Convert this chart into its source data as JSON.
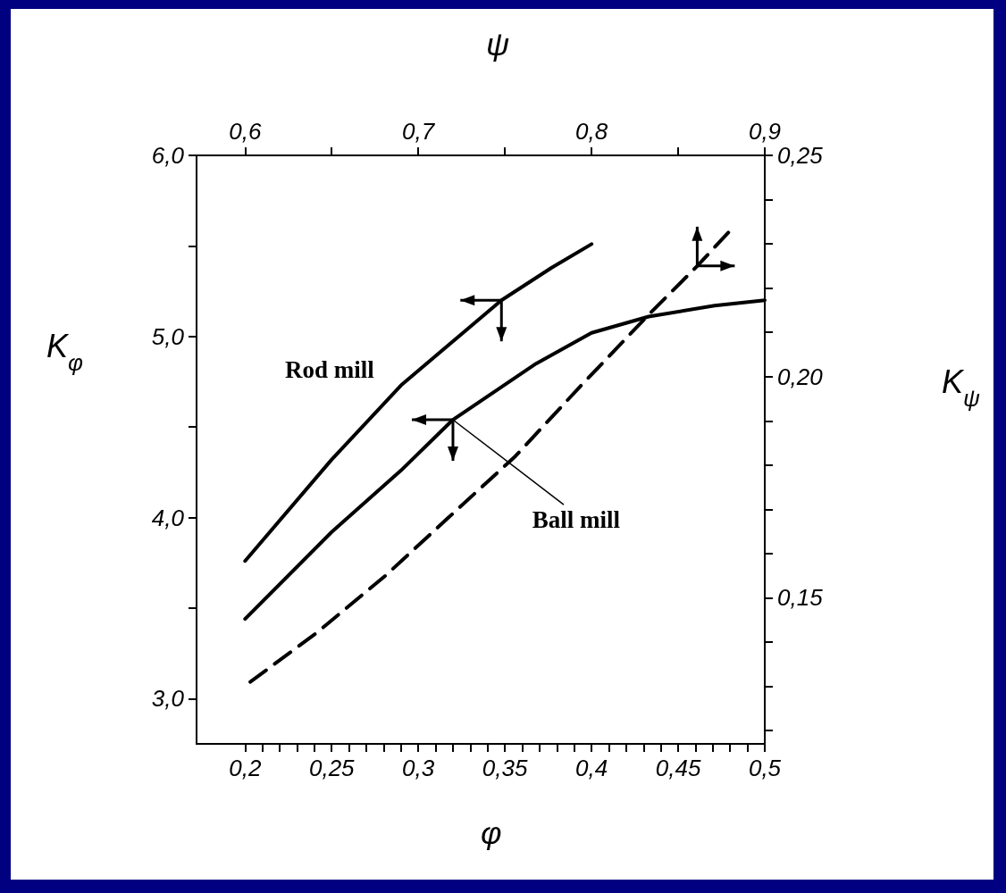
{
  "chart_data": [
    {
      "type": "line",
      "xlabel": "φ",
      "ylabel": "K$_{φ}$",
      "grid": false,
      "legend": false,
      "marker": "none",
      "xlim": [
        0.172,
        0.5
      ],
      "xticks": [
        {
          "value": 0.2,
          "label": "0,2"
        },
        {
          "value": 0.21,
          "label": null
        },
        {
          "value": 0.22,
          "label": null
        },
        {
          "value": 0.23,
          "label": null
        },
        {
          "value": 0.24,
          "label": null
        },
        {
          "value": 0.25,
          "label": "0,25"
        },
        {
          "value": 0.26,
          "label": null
        },
        {
          "value": 0.27,
          "label": null
        },
        {
          "value": 0.28,
          "label": null
        },
        {
          "value": 0.29,
          "label": null
        },
        {
          "value": 0.3,
          "label": "0,3"
        },
        {
          "value": 0.31,
          "label": null
        },
        {
          "value": 0.32,
          "label": null
        },
        {
          "value": 0.33,
          "label": null
        },
        {
          "value": 0.34,
          "label": null
        },
        {
          "value": 0.35,
          "label": "0,35"
        },
        {
          "value": 0.36,
          "label": null
        },
        {
          "value": 0.37,
          "label": null
        },
        {
          "value": 0.38,
          "label": null
        },
        {
          "value": 0.39,
          "label": null
        },
        {
          "value": 0.4,
          "label": "0,4"
        },
        {
          "value": 0.41,
          "label": null
        },
        {
          "value": 0.42,
          "label": null
        },
        {
          "value": 0.43,
          "label": null
        },
        {
          "value": 0.44,
          "label": null
        },
        {
          "value": 0.45,
          "label": "0,45"
        },
        {
          "value": 0.46,
          "label": null
        },
        {
          "value": 0.47,
          "label": null
        },
        {
          "value": 0.48,
          "label": null
        },
        {
          "value": 0.49,
          "label": null
        },
        {
          "value": 0.5,
          "label": "0,5"
        }
      ],
      "ylim": [
        2.75,
        6.0
      ],
      "yticks": [
        {
          "value": 3,
          "label": "3,0"
        },
        {
          "value": 3.5,
          "label": null
        },
        {
          "value": 4,
          "label": "4,0"
        },
        {
          "value": 4.5,
          "label": null
        },
        {
          "value": 5,
          "label": "5,0"
        },
        {
          "value": 5.5,
          "label": null
        },
        {
          "value": 6,
          "label": "6,0"
        }
      ],
      "annotations": [
        {
          "text": "Ball mill",
          "x": 0.32,
          "y": 4.54
        }
      ],
      "series": [
        {
          "name": "Rod mill",
          "color": "#000000",
          "line_style": "solid",
          "x": [
            0.2,
            0.25,
            0.29,
            0.348,
            0.377,
            0.4
          ],
          "values": [
            3.76,
            4.32,
            4.73,
            5.2,
            5.38,
            5.51
          ]
        },
        {
          "color": "#000000",
          "line_style": "solid",
          "x": [
            0.2,
            0.25,
            0.29,
            0.32,
            0.368,
            0.4,
            0.433,
            0.471,
            0.5
          ],
          "values": [
            3.44,
            3.92,
            4.26,
            4.54,
            4.85,
            5.02,
            5.11,
            5.17,
            5.2
          ]
        }
      ]
    },
    {
      "type": "line",
      "xlabel": "ψ",
      "ylabel": "K$_{ψ}$",
      "grid": false,
      "legend": false,
      "marker": "none",
      "xlim": [
        0.572,
        0.9
      ],
      "xticks": [
        {
          "value": 0.6,
          "label": "0,6"
        },
        {
          "value": 0.65,
          "label": null
        },
        {
          "value": 0.7,
          "label": "0,7"
        },
        {
          "value": 0.75,
          "label": null
        },
        {
          "value": 0.8,
          "label": "0,8"
        },
        {
          "value": 0.85,
          "label": null
        },
        {
          "value": 0.9,
          "label": "0,9"
        }
      ],
      "ylim": [
        0.117,
        0.25
      ],
      "yticks": [
        {
          "value": 0.12,
          "label": null
        },
        {
          "value": 0.13,
          "label": null
        },
        {
          "value": 0.14,
          "label": null
        },
        {
          "value": 0.15,
          "label": "0,15"
        },
        {
          "value": 0.16,
          "label": null
        },
        {
          "value": 0.17,
          "label": null
        },
        {
          "value": 0.18,
          "label": null
        },
        {
          "value": 0.19,
          "label": null
        },
        {
          "value": 0.2,
          "label": "0,20"
        },
        {
          "value": 0.21,
          "label": null
        },
        {
          "value": 0.22,
          "label": null
        },
        {
          "value": 0.23,
          "label": null
        },
        {
          "value": 0.24,
          "label": null
        },
        {
          "value": 0.25,
          "label": "0,25"
        }
      ],
      "series": [
        {
          "color": "#000000",
          "line_style": "dashed",
          "x": [
            0.603,
            0.641,
            0.681,
            0.717,
            0.756,
            0.794,
            0.833,
            0.861,
            0.88
          ],
          "values": [
            0.131,
            0.142,
            0.155,
            0.168,
            0.182,
            0.198,
            0.214,
            0.225,
            0.233
          ]
        }
      ]
    }
  ]
}
